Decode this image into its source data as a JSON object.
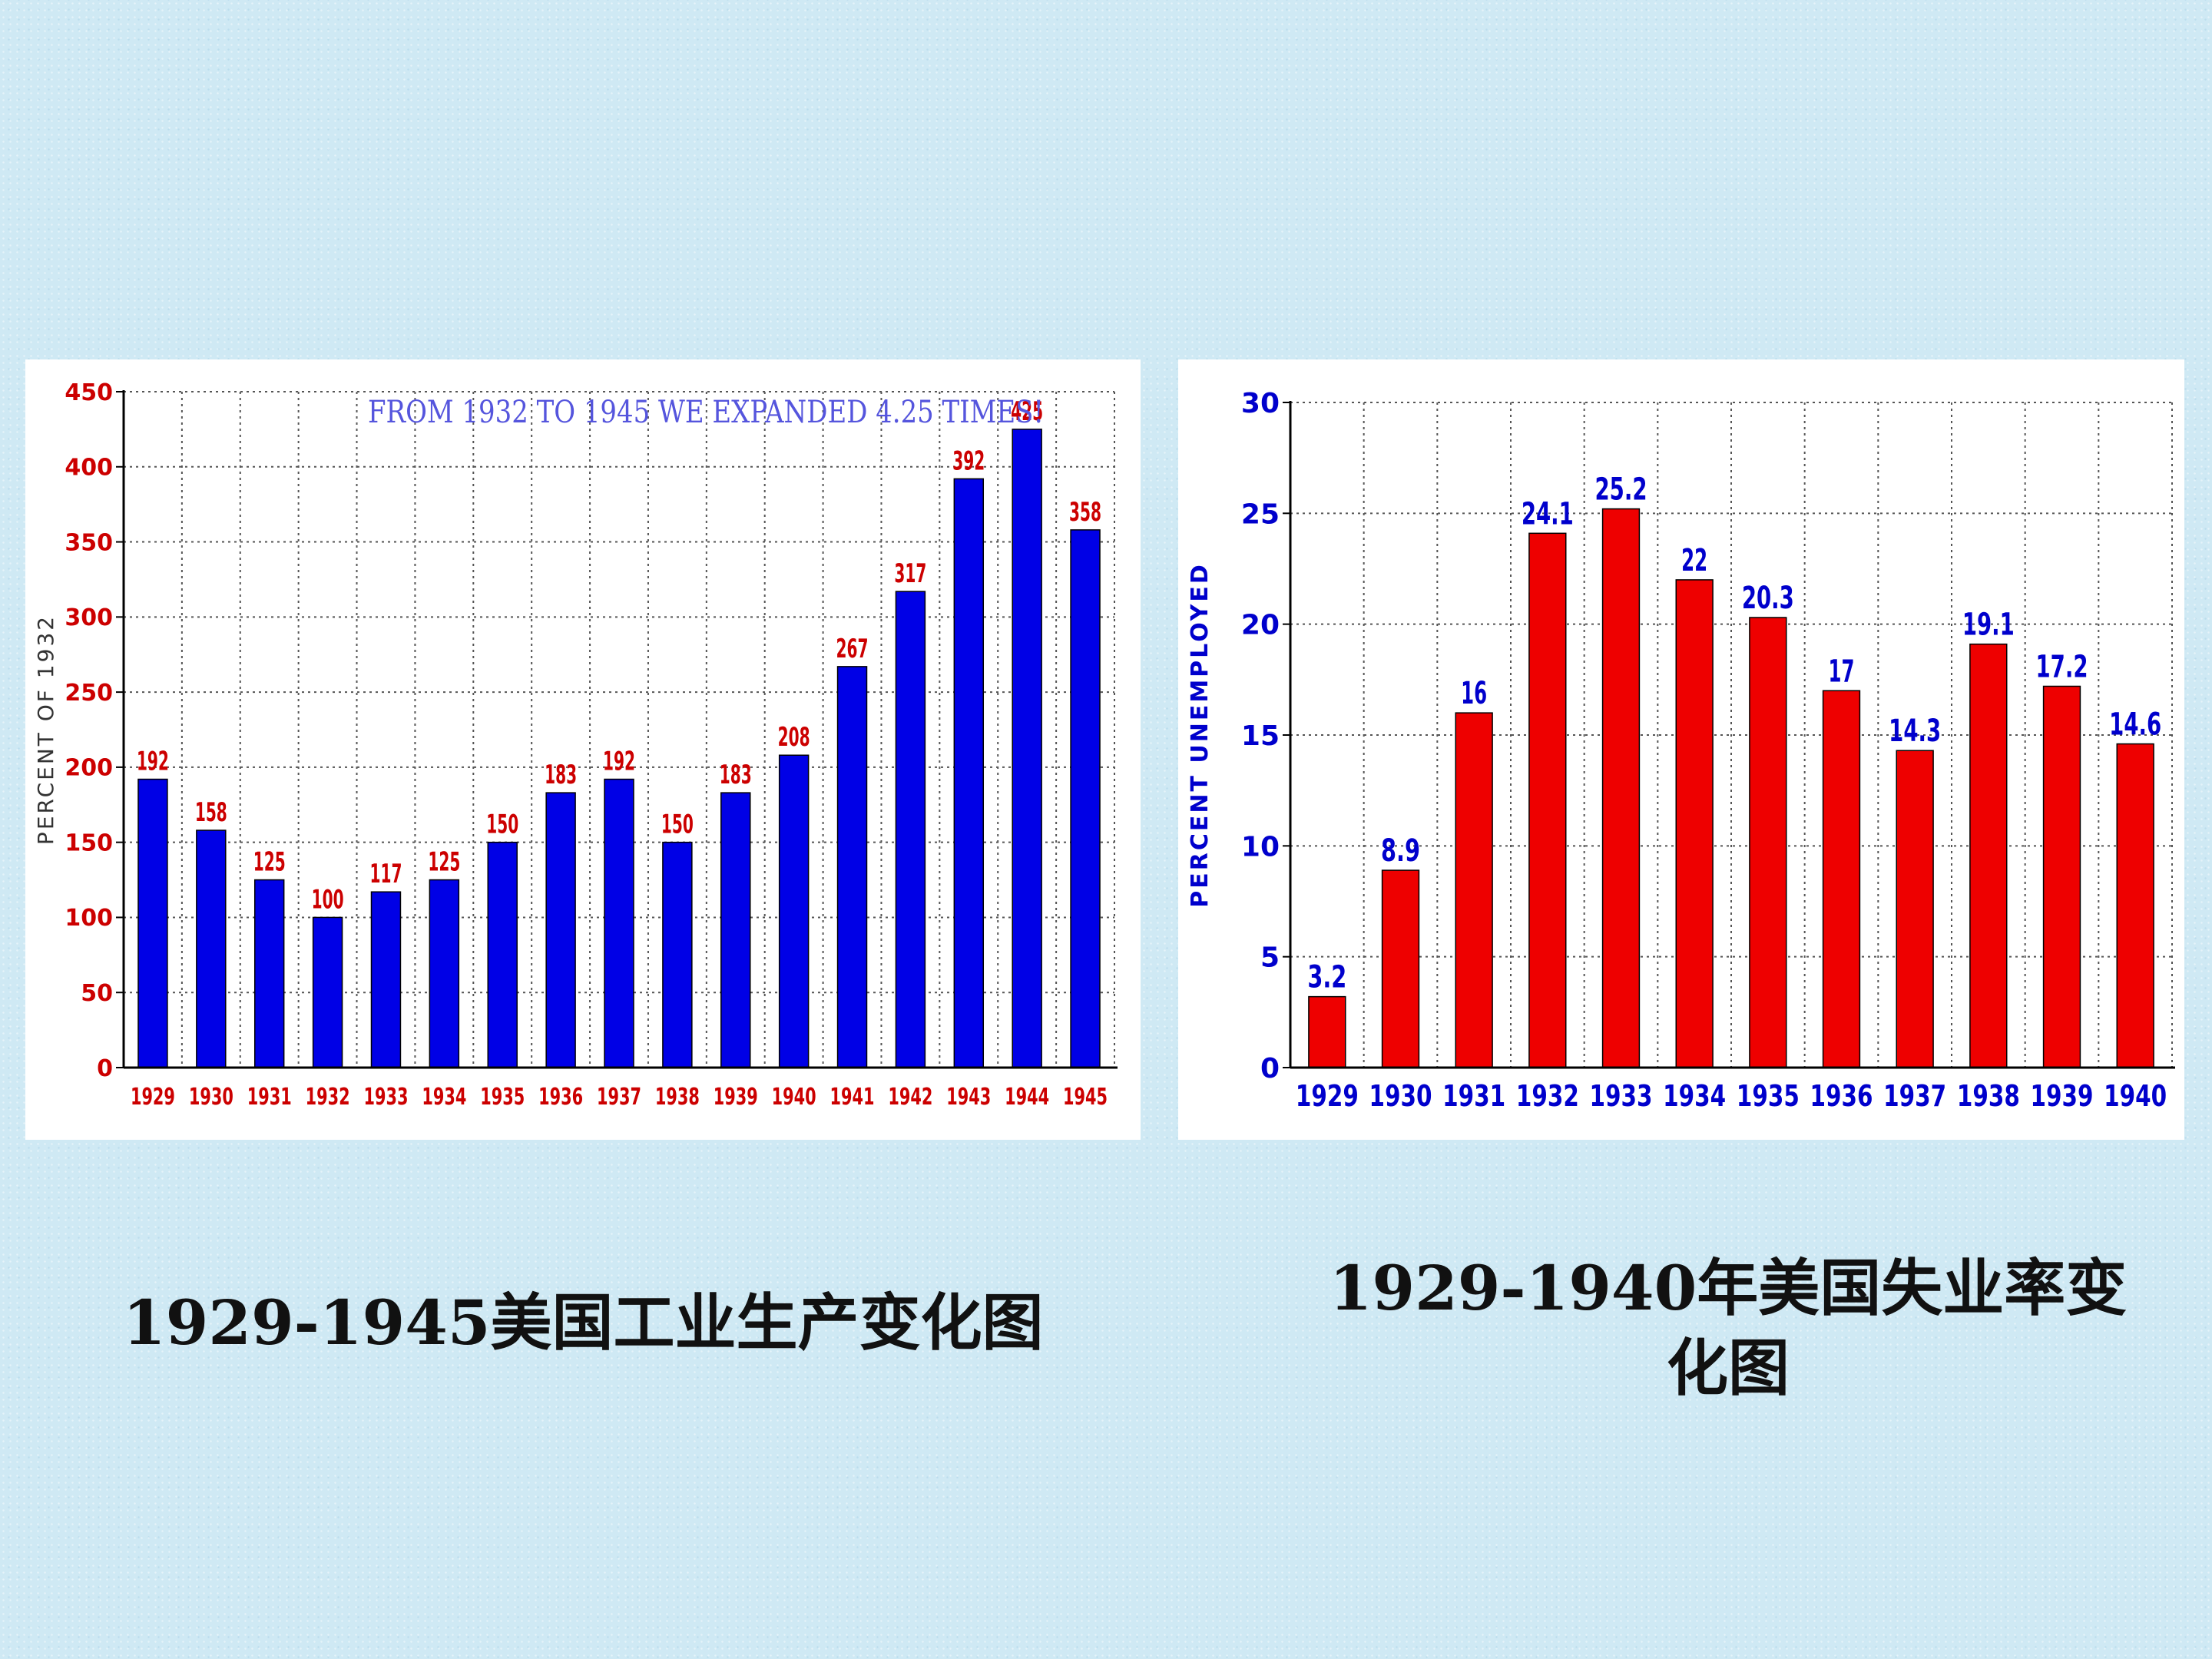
{
  "captions": {
    "left": "1929-1945美国工业生产变化图",
    "right": "1929-1940年美国失业率变化图"
  },
  "colors": {
    "left_bar": "#0000e6",
    "left_label": "#cc0000",
    "left_annotation": "#5555dd",
    "right_bar": "#ee0000",
    "right_label": "#0000cc"
  },
  "chart_data": [
    {
      "type": "bar",
      "title": "",
      "annotation": "FROM 1932 TO 1945 WE EXPANDED 4.25 TIMES!",
      "xlabel": "",
      "ylabel": "PERCENT OF 1932",
      "ylim": [
        0,
        450
      ],
      "yticks": [
        0,
        50,
        100,
        150,
        200,
        250,
        300,
        350,
        400,
        450
      ],
      "grid": true,
      "categories": [
        "1929",
        "1930",
        "1931",
        "1932",
        "1933",
        "1934",
        "1935",
        "1936",
        "1937",
        "1938",
        "1939",
        "1940",
        "1941",
        "1942",
        "1943",
        "1944",
        "1945"
      ],
      "values": [
        192,
        158,
        125,
        100,
        117,
        125,
        150,
        183,
        192,
        150,
        183,
        208,
        267,
        317,
        392,
        425,
        358
      ]
    },
    {
      "type": "bar",
      "title": "",
      "xlabel": "",
      "ylabel": "PERCENT UNEMPLOYED",
      "ylim": [
        0,
        30
      ],
      "yticks": [
        0,
        5,
        10,
        15,
        20,
        25,
        30
      ],
      "grid": true,
      "categories": [
        "1929",
        "1930",
        "1931",
        "1932",
        "1933",
        "1934",
        "1935",
        "1936",
        "1937",
        "1938",
        "1939",
        "1940"
      ],
      "values": [
        3.2,
        8.9,
        16,
        24.1,
        25.2,
        22,
        20.3,
        17,
        14.3,
        19.1,
        17.2,
        14.6
      ]
    }
  ]
}
